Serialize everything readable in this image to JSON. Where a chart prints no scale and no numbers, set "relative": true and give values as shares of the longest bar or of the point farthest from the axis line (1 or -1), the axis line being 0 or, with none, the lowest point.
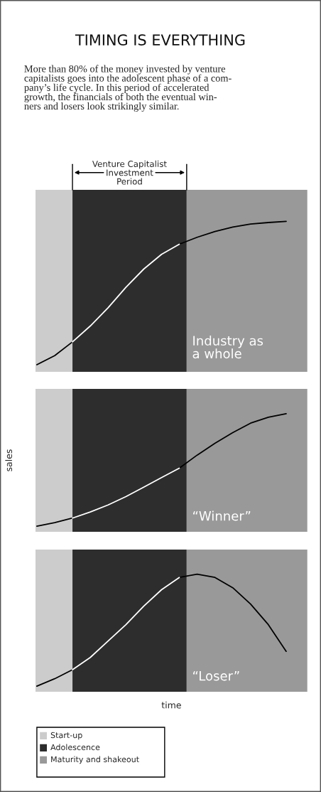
{
  "chart_data": [
    {
      "type": "line",
      "title": "TIMING IS EVERYTHING",
      "subtitle": "More than 80% of the money invested by venture\ncapitalists goes into the adolescent phase of a com-\npany’s life cycle. In this period of accelerated\ngrowth, the financials of both the eventual win-\nners and losers look strikingly similar.",
      "relative": true,
      "categories": [
        null,
        null,
        null,
        null,
        null,
        null,
        null,
        null,
        null,
        null,
        null,
        null,
        null,
        null,
        null
      ],
      "series": [
        {
          "color": "#000000",
          "values": [
            0,
            0.063,
            0.159,
            null,
            null,
            null,
            null,
            null,
            0.841,
            0.889,
            0.929,
            0.96,
            0.981,
            0.992,
            1.0
          ]
        },
        {
          "color": "#ffffff",
          "values": [
            null,
            null,
            0.159,
            0.27,
            0.397,
            0.54,
            0.667,
            0.77,
            0.841,
            null,
            null,
            null,
            null,
            null,
            null
          ]
        }
      ],
      "annotations": [
        "Venture Capitalist\nInvestment\nPeriod",
        "Industry as\na whole"
      ]
    },
    {
      "type": "line",
      "ylabel": "sales",
      "relative": true,
      "categories": [
        null,
        null,
        null,
        null,
        null,
        null,
        null,
        null,
        null,
        null,
        null,
        null,
        null,
        null,
        null
      ],
      "series": [
        {
          "color": "#000000",
          "values": [
            0,
            0.032,
            0.072,
            null,
            null,
            null,
            null,
            null,
            0.516,
            0.632,
            0.737,
            0.832,
            0.916,
            0.968,
            1.0
          ]
        },
        {
          "color": "#ffffff",
          "values": [
            null,
            null,
            0.072,
            0.126,
            0.189,
            0.263,
            0.347,
            0.432,
            0.516,
            null,
            null,
            null,
            null,
            null,
            null
          ]
        }
      ],
      "annotations": [
        "“Winner”"
      ]
    },
    {
      "type": "line",
      "xlabel": "time",
      "relative": true,
      "categories": [
        null,
        null,
        null,
        null,
        null,
        null,
        null,
        null,
        null,
        null,
        null,
        null,
        null,
        null,
        null
      ],
      "series": [
        {
          "color": "#000000",
          "values": [
            0,
            0.066,
            0.147,
            null,
            null,
            null,
            null,
            null,
            0.971,
            1.0,
            0.971,
            0.879,
            0.733,
            0.549,
            0.311
          ]
        },
        {
          "color": "#ffffff",
          "values": [
            null,
            null,
            0.147,
            0.256,
            0.403,
            0.549,
            0.714,
            0.861,
            0.971,
            null,
            null,
            null,
            null,
            null,
            null
          ]
        }
      ],
      "annotations": [
        "“Loser”",
        "Start-up",
        "Adolescence",
        "Maturity and shakeout"
      ]
    }
  ]
}
